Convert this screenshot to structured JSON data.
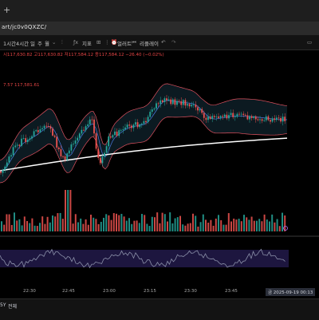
{
  "browser": {
    "new_tab_symbol": "+",
    "url_fragment": "art/jc0v0QXZC/"
  },
  "toolbar": {
    "intervals": [
      "1시간",
      "4시간",
      "일",
      "주",
      "월"
    ],
    "indicators_label": "지표",
    "alert_label": "얼러트",
    "replay_label": "리플레이"
  },
  "legend": {
    "ohlc_text": "시117,630.82  고117,630.82  저117,584.12  종117,584.12  −26.40 (−0.02%)",
    "indicator_text": "7.57  117,581.61"
  },
  "x_axis": {
    "ticks": [
      "22:30",
      "22:45",
      "23:00",
      "23:15",
      "23:30",
      "23:45",
      "19"
    ],
    "current_time": "금 2025-09-19  00:13"
  },
  "bottom_bar": {
    "label1": "5Y",
    "label2": "전체"
  },
  "colors": {
    "up": "#26a69a",
    "down": "#ef5350",
    "band": "#e05260",
    "ma_short": "#4a78e0",
    "ma_long": "#ffffff",
    "oscillator": "#8a8fa8",
    "oscillator_band": "#2a1f5a"
  }
}
